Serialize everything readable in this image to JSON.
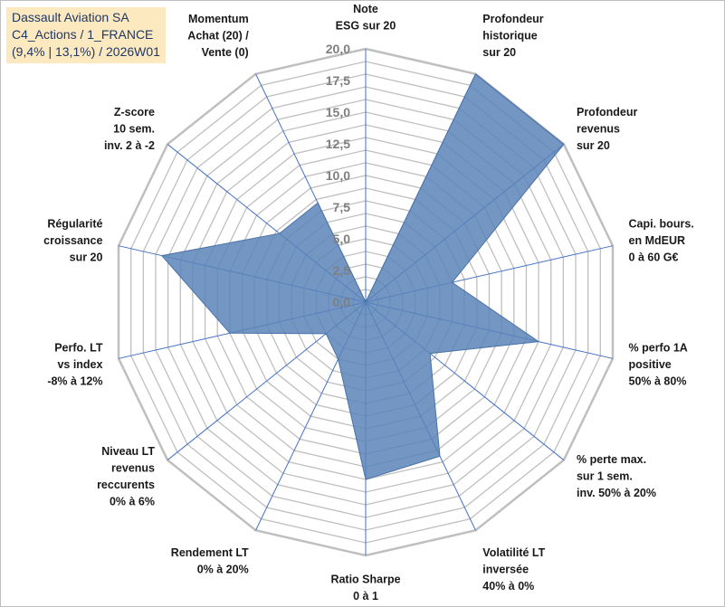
{
  "header": {
    "line1": "Dassault Aviation SA",
    "line2": "C4_Actions / 1_FRANCE",
    "line3": "(9,4% | 13,1%) / 2026W01"
  },
  "colors": {
    "grid": "#bfbfbf",
    "spoke": "#4472c4",
    "fill": "#5b84b9",
    "fill_stroke": "#4a72a8",
    "title_bg": "#fde9c0",
    "title_text": "#1f3864"
  },
  "chart_data": {
    "type": "radar",
    "title": "Dassault Aviation SA",
    "rmin": 0,
    "rmax": 20,
    "tick_step": 2.5,
    "gridlines": 20,
    "tick_labels": [
      "0,0",
      "2,5",
      "5,0",
      "7,5",
      "10,0",
      "12,5",
      "15,0",
      "17,5",
      "20,0"
    ],
    "axes": [
      {
        "label": [
          "Note",
          "ESG sur 20"
        ],
        "value": 0
      },
      {
        "label": [
          "Profondeur",
          "historique",
          "sur 20"
        ],
        "value": 20
      },
      {
        "label": [
          "Profondeur",
          "revenus",
          "sur 20"
        ],
        "value": 20
      },
      {
        "label": [
          "Capi. bours.",
          "en MdEUR",
          "0 à 60 G€"
        ],
        "value": 7
      },
      {
        "label": [
          "% perfo 1A",
          "positive",
          "50% à 80%"
        ],
        "value": 14
      },
      {
        "label": [
          "% perte max.",
          "sur 1 sem.",
          "inv. 50% à 20%"
        ],
        "value": 6.5
      },
      {
        "label": [
          "Volatilité LT",
          "inversée",
          "40% à 0%"
        ],
        "value": 13.5
      },
      {
        "label": [
          "Ratio Sharpe",
          "0 à 1"
        ],
        "value": 14
      },
      {
        "label": [
          "Rendement LT",
          "0% à 20%"
        ],
        "value": 5
      },
      {
        "label": [
          "Niveau LT",
          "revenus",
          "reccurents",
          "0% à 6%"
        ],
        "value": 4
      },
      {
        "label": [
          "Perfo. LT",
          "vs index",
          "-8% à 12%"
        ],
        "value": 11
      },
      {
        "label": [
          "Régularité",
          "croissance",
          "sur 20"
        ],
        "value": 16.5
      },
      {
        "label": [
          "Z-score",
          "10 sem.",
          "inv. 2 à -2"
        ],
        "value": 8.7
      },
      {
        "label": [
          "Momentum",
          "Achat (20) /",
          "Vente (0)"
        ],
        "value": 8.7
      }
    ]
  }
}
